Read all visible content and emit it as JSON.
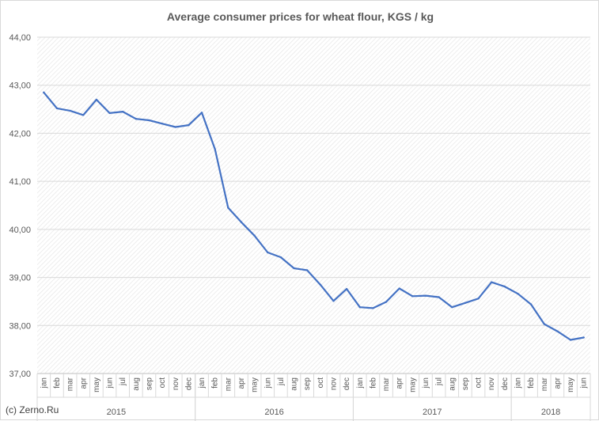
{
  "title": "Average consumer prices for wheat flour, KGS / kg",
  "copyright": "(c) Zerno.Ru",
  "chart_data": {
    "type": "line",
    "title": "Average consumer prices for wheat flour, KGS / kg",
    "ylim": [
      37.0,
      44.0
    ],
    "y_ticks": [
      "44,00",
      "43,00",
      "42,00",
      "41,00",
      "40,00",
      "39,00",
      "38,00",
      "37,00"
    ],
    "y_tick_values": [
      44,
      43,
      42,
      41,
      40,
      39,
      38,
      37
    ],
    "grid": true,
    "line_color": "#4472c4",
    "years": [
      {
        "label": "2015",
        "months": [
          "jan",
          "feb",
          "mar",
          "apr",
          "may",
          "jun",
          "jul",
          "aug",
          "sep",
          "oct",
          "nov",
          "dec"
        ]
      },
      {
        "label": "2016",
        "months": [
          "jan",
          "feb",
          "mar",
          "apr",
          "may",
          "jun",
          "jul",
          "aug",
          "sep",
          "oct",
          "nov",
          "dec"
        ]
      },
      {
        "label": "2017",
        "months": [
          "jan",
          "feb",
          "mar",
          "apr",
          "may",
          "jun",
          "jul",
          "aug",
          "sep",
          "oct",
          "nov",
          "dec"
        ]
      },
      {
        "label": "2018",
        "months": [
          "jan",
          "feb",
          "mar",
          "apr",
          "may",
          "jun"
        ]
      }
    ],
    "values": [
      42.85,
      42.52,
      42.47,
      42.38,
      42.7,
      42.42,
      42.45,
      42.3,
      42.27,
      42.2,
      42.13,
      42.17,
      42.43,
      41.67,
      40.45,
      40.15,
      39.87,
      39.52,
      39.42,
      39.19,
      39.15,
      38.85,
      38.51,
      38.76,
      38.38,
      38.36,
      38.49,
      38.77,
      38.61,
      38.62,
      38.59,
      38.38,
      38.47,
      38.56,
      38.9,
      38.81,
      38.66,
      38.44,
      38.03,
      37.88,
      37.7,
      37.75
    ]
  }
}
